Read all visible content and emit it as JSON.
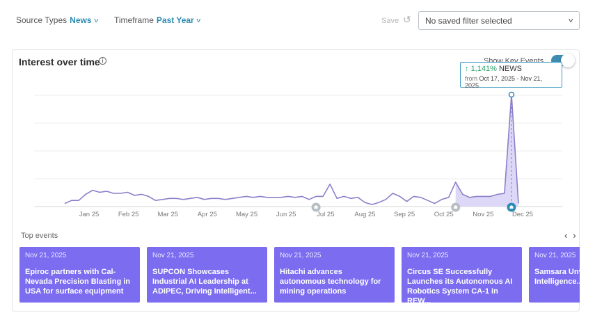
{
  "filters": {
    "source_types": {
      "label": "Source Types",
      "value": "News"
    },
    "timeframe": {
      "label": "Timeframe",
      "value": "Past Year"
    }
  },
  "save": {
    "label": "Save",
    "undo_icon": "undo-icon"
  },
  "saved_filter": {
    "value": "No saved filter selected"
  },
  "card": {
    "title": "Interest over time",
    "info_icon": "info-icon",
    "toggle_label": "Show Key Events",
    "toggle_on": true
  },
  "tooltip": {
    "change": "1,141%",
    "arrow": "↑",
    "source": "NEWS",
    "from_label": "from",
    "range": "Oct 17, 2025 - Nov 21, 2025"
  },
  "chart_data": {
    "type": "line",
    "x_ticks": [
      "Jan 25",
      "Feb 25",
      "Mar 25",
      "Apr 25",
      "May 25",
      "Jun 25",
      "Jul 25",
      "Aug 25",
      "Sep 25",
      "Oct 25",
      "Nov 25",
      "Dec 25"
    ],
    "y_grid": 5,
    "values": [
      3,
      6,
      6,
      12,
      16,
      14,
      15,
      13,
      13,
      14,
      11,
      12,
      10,
      6,
      7,
      8,
      8,
      7,
      8,
      9,
      7,
      8,
      8,
      7,
      8,
      9,
      10,
      9,
      10,
      9,
      9,
      9,
      10,
      9,
      10,
      7,
      10,
      10,
      22,
      8,
      10,
      8,
      9,
      4,
      2,
      4,
      7,
      13,
      10,
      5,
      10,
      9,
      6,
      3,
      7,
      9,
      24,
      12,
      9,
      10,
      10,
      10,
      12,
      13,
      110,
      3
    ],
    "highlight_start_index": 56,
    "peak_index": 64,
    "key_event_markers": [
      {
        "label": "key-event-marker",
        "index": 36,
        "active": false
      },
      {
        "label": "key-event-marker",
        "index": 56,
        "active": false
      },
      {
        "label": "key-event-marker",
        "index": 64,
        "active": true
      }
    ],
    "colors": {
      "line": "#8a7fc9",
      "fill": "#d7d1f6",
      "marker": "#b9bec3",
      "marker_active": "#2d8bb5"
    }
  },
  "top_events": {
    "label": "Top events",
    "prev_icon": "chevron-left-icon",
    "next_icon": "chevron-right-icon",
    "items": [
      {
        "date": "Nov 21, 2025",
        "headline": "Epiroc partners with Cal-Nevada Precision Blasting in USA for surface equipment"
      },
      {
        "date": "Nov 21, 2025",
        "headline": "SUPCON Showcases Industrial AI Leadership at ADIPEC, Driving Intelligent..."
      },
      {
        "date": "Nov 21, 2025",
        "headline": "Hitachi advances autonomous technology for mining operations"
      },
      {
        "date": "Nov 21, 2025",
        "headline": "Circus SE Successfully Launches its Autonomous AI Robotics System CA-1 in REW..."
      },
      {
        "date": "Nov 21, 2025",
        "headline": "Samsara Unveils Compliance Intelligence..."
      }
    ],
    "card_color": "#7b6cf0"
  }
}
